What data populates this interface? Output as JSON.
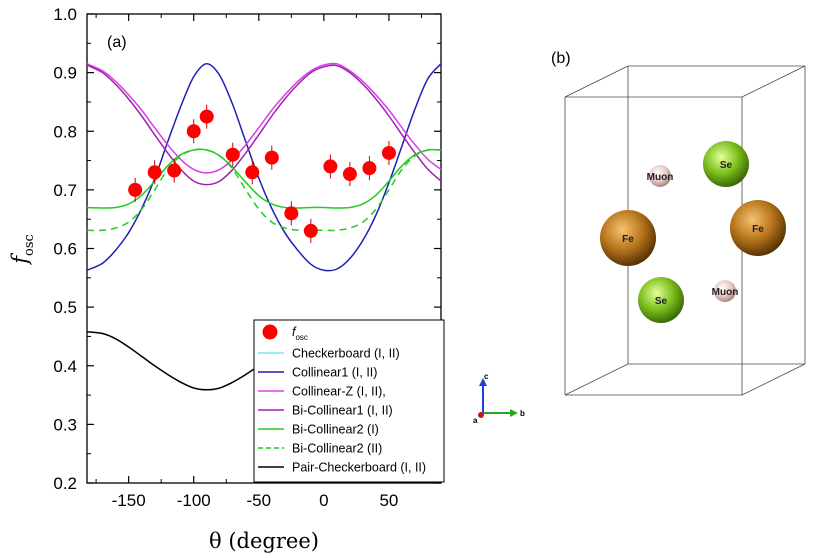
{
  "chart_data": {
    "type": "line",
    "panel_label": "(a)",
    "xlabel": "θ (degree)",
    "ylabel_main": "f",
    "ylabel_sub": "osc",
    "xlim": [
      -182,
      90
    ],
    "ylim": [
      0.2,
      1.0
    ],
    "xticks": [
      -150,
      -100,
      -50,
      0,
      50
    ],
    "xtick_labels": [
      "-150",
      "-100",
      "-50",
      "0",
      "50"
    ],
    "yticks": [
      0.2,
      0.3,
      0.4,
      0.5,
      0.6,
      0.7,
      0.8,
      0.9,
      1.0
    ],
    "ytick_labels": [
      "0.2",
      "0.3",
      "0.4",
      "0.5",
      "0.6",
      "0.7",
      "0.8",
      "0.9",
      "1.0"
    ],
    "points": {
      "name_main": "f",
      "name_sub": "osc",
      "color": "#ff0000",
      "x": [
        -145,
        -130,
        -115,
        -100,
        -90,
        -70,
        -55,
        -40,
        -25,
        -10,
        5,
        20,
        35,
        50
      ],
      "y": [
        0.7,
        0.73,
        0.733,
        0.8,
        0.825,
        0.76,
        0.73,
        0.755,
        0.66,
        0.63,
        0.74,
        0.727,
        0.737,
        0.763
      ]
    },
    "series": [
      {
        "name": "Checkerboard (I, II)",
        "color": "#7fe6f2",
        "dash": "",
        "key": "checker",
        "x": [
          -182,
          -170,
          -160,
          -150,
          -140,
          -130,
          -120,
          -110,
          -100,
          -90,
          -80,
          -70,
          -60,
          -50,
          -40,
          -30,
          -20,
          -10,
          0,
          10,
          20,
          30,
          40,
          50,
          60,
          70,
          80,
          90
        ],
        "y": [
          0.915,
          0.903,
          0.885,
          0.862,
          0.836,
          0.806,
          0.777,
          0.752,
          0.735,
          0.729,
          0.735,
          0.752,
          0.777,
          0.806,
          0.836,
          0.862,
          0.885,
          0.903,
          0.913,
          0.915,
          0.903,
          0.885,
          0.862,
          0.836,
          0.806,
          0.777,
          0.752,
          0.735
        ]
      },
      {
        "name": "Collinear1 (I, II)",
        "color": "#1f1fb4",
        "dash": "",
        "key": "collinear",
        "x": [
          -182,
          -170,
          -160,
          -150,
          -140,
          -130,
          -120,
          -110,
          -100,
          -90,
          -80,
          -70,
          -60,
          -50,
          -40,
          -30,
          -20,
          -10,
          0,
          10,
          20,
          30,
          40,
          50,
          60,
          70,
          80,
          90
        ],
        "y": [
          0.563,
          0.575,
          0.597,
          0.627,
          0.668,
          0.719,
          0.782,
          0.842,
          0.893,
          0.915,
          0.895,
          0.845,
          0.782,
          0.72,
          0.668,
          0.627,
          0.597,
          0.573,
          0.563,
          0.565,
          0.583,
          0.614,
          0.657,
          0.712,
          0.775,
          0.838,
          0.89,
          0.915
        ]
      },
      {
        "name": "Collinear-Z (I, II),",
        "color": "#e040e8",
        "dash": "",
        "key": "colz",
        "x": [
          -182,
          -170,
          -160,
          -150,
          -140,
          -130,
          -120,
          -110,
          -100,
          -90,
          -80,
          -70,
          -60,
          -50,
          -40,
          -30,
          -20,
          -10,
          0,
          10,
          20,
          30,
          40,
          50,
          60,
          70,
          80,
          90
        ],
        "y": [
          0.915,
          0.903,
          0.885,
          0.862,
          0.836,
          0.806,
          0.777,
          0.752,
          0.735,
          0.729,
          0.735,
          0.752,
          0.777,
          0.806,
          0.836,
          0.862,
          0.885,
          0.903,
          0.913,
          0.915,
          0.903,
          0.885,
          0.862,
          0.836,
          0.806,
          0.777,
          0.752,
          0.735
        ]
      },
      {
        "name": "Bi-Collinear1 (I, II)",
        "color": "#a020b0",
        "dash": "",
        "key": "bicol1",
        "x": [
          -182,
          -170,
          -160,
          -150,
          -140,
          -130,
          -120,
          -110,
          -100,
          -90,
          -80,
          -70,
          -60,
          -50,
          -40,
          -30,
          -20,
          -10,
          0,
          10,
          20,
          30,
          40,
          50,
          60,
          70,
          80,
          90
        ],
        "y": [
          0.913,
          0.9,
          0.88,
          0.855,
          0.826,
          0.794,
          0.763,
          0.735,
          0.715,
          0.709,
          0.715,
          0.735,
          0.763,
          0.794,
          0.826,
          0.855,
          0.88,
          0.9,
          0.91,
          0.912,
          0.9,
          0.88,
          0.855,
          0.826,
          0.794,
          0.763,
          0.735,
          0.715
        ]
      },
      {
        "name": "Bi-Collinear2 (I)",
        "color": "#22cc22",
        "dash": "",
        "key": "bicol2a",
        "x": [
          -182,
          -170,
          -160,
          -150,
          -140,
          -130,
          -120,
          -110,
          -100,
          -90,
          -80,
          -70,
          -60,
          -50,
          -40,
          -30,
          -20,
          -10,
          0,
          10,
          20,
          30,
          40,
          50,
          60,
          70,
          80,
          90
        ],
        "y": [
          0.67,
          0.669,
          0.67,
          0.676,
          0.691,
          0.715,
          0.741,
          0.76,
          0.768,
          0.768,
          0.758,
          0.738,
          0.713,
          0.69,
          0.676,
          0.67,
          0.669,
          0.67,
          0.67,
          0.669,
          0.67,
          0.676,
          0.691,
          0.715,
          0.741,
          0.76,
          0.768,
          0.768
        ]
      },
      {
        "name": "Bi-Collinear2 (II)",
        "color": "#22cc22",
        "dash": "7,5",
        "key": "bicol2b",
        "x": [
          -182,
          -170,
          -160,
          -150,
          -140,
          -130,
          -120,
          -110,
          -100,
          -90,
          -80,
          -70,
          -60,
          -50,
          -40,
          -30,
          -20,
          -10,
          0,
          10,
          20,
          30,
          40,
          50,
          60,
          70,
          80,
          90
        ],
        "y": [
          0.631,
          0.631,
          0.635,
          0.645,
          0.667,
          0.7,
          0.735,
          0.758,
          0.768,
          0.768,
          0.758,
          0.735,
          0.7,
          0.667,
          0.645,
          0.635,
          0.631,
          0.631,
          0.631,
          0.631,
          0.635,
          0.645,
          0.667,
          0.7,
          0.735,
          0.758,
          0.768,
          0.768
        ]
      },
      {
        "name": "Pair-Checkerboard (I, II)",
        "color": "#000000",
        "dash": "",
        "key": "pair",
        "x": [
          -182,
          -170,
          -160,
          -150,
          -140,
          -130,
          -120,
          -110,
          -100,
          -90,
          -80,
          -70,
          -60,
          -50
        ],
        "y": [
          0.458,
          0.455,
          0.446,
          0.432,
          0.416,
          0.4,
          0.385,
          0.372,
          0.362,
          0.359,
          0.362,
          0.372,
          0.385,
          0.4
        ]
      }
    ]
  },
  "panel_b": {
    "label": "(b)",
    "atoms": [
      {
        "name": "Se",
        "kind": "se",
        "id": "se-top"
      },
      {
        "name": "Muon",
        "kind": "muon",
        "id": "muon-top"
      },
      {
        "name": "Fe",
        "kind": "fe",
        "id": "fe-left"
      },
      {
        "name": "Fe",
        "kind": "fe",
        "id": "fe-right"
      },
      {
        "name": "Se",
        "kind": "se",
        "id": "se-bottom"
      },
      {
        "name": "Muon",
        "kind": "muon",
        "id": "muon-bottom"
      }
    ],
    "axes": {
      "c": "c",
      "b": "b",
      "a": "a"
    },
    "colors": {
      "se": "#7cc01e",
      "fe": "#b8761c",
      "muon": "#e8c8c4"
    }
  }
}
